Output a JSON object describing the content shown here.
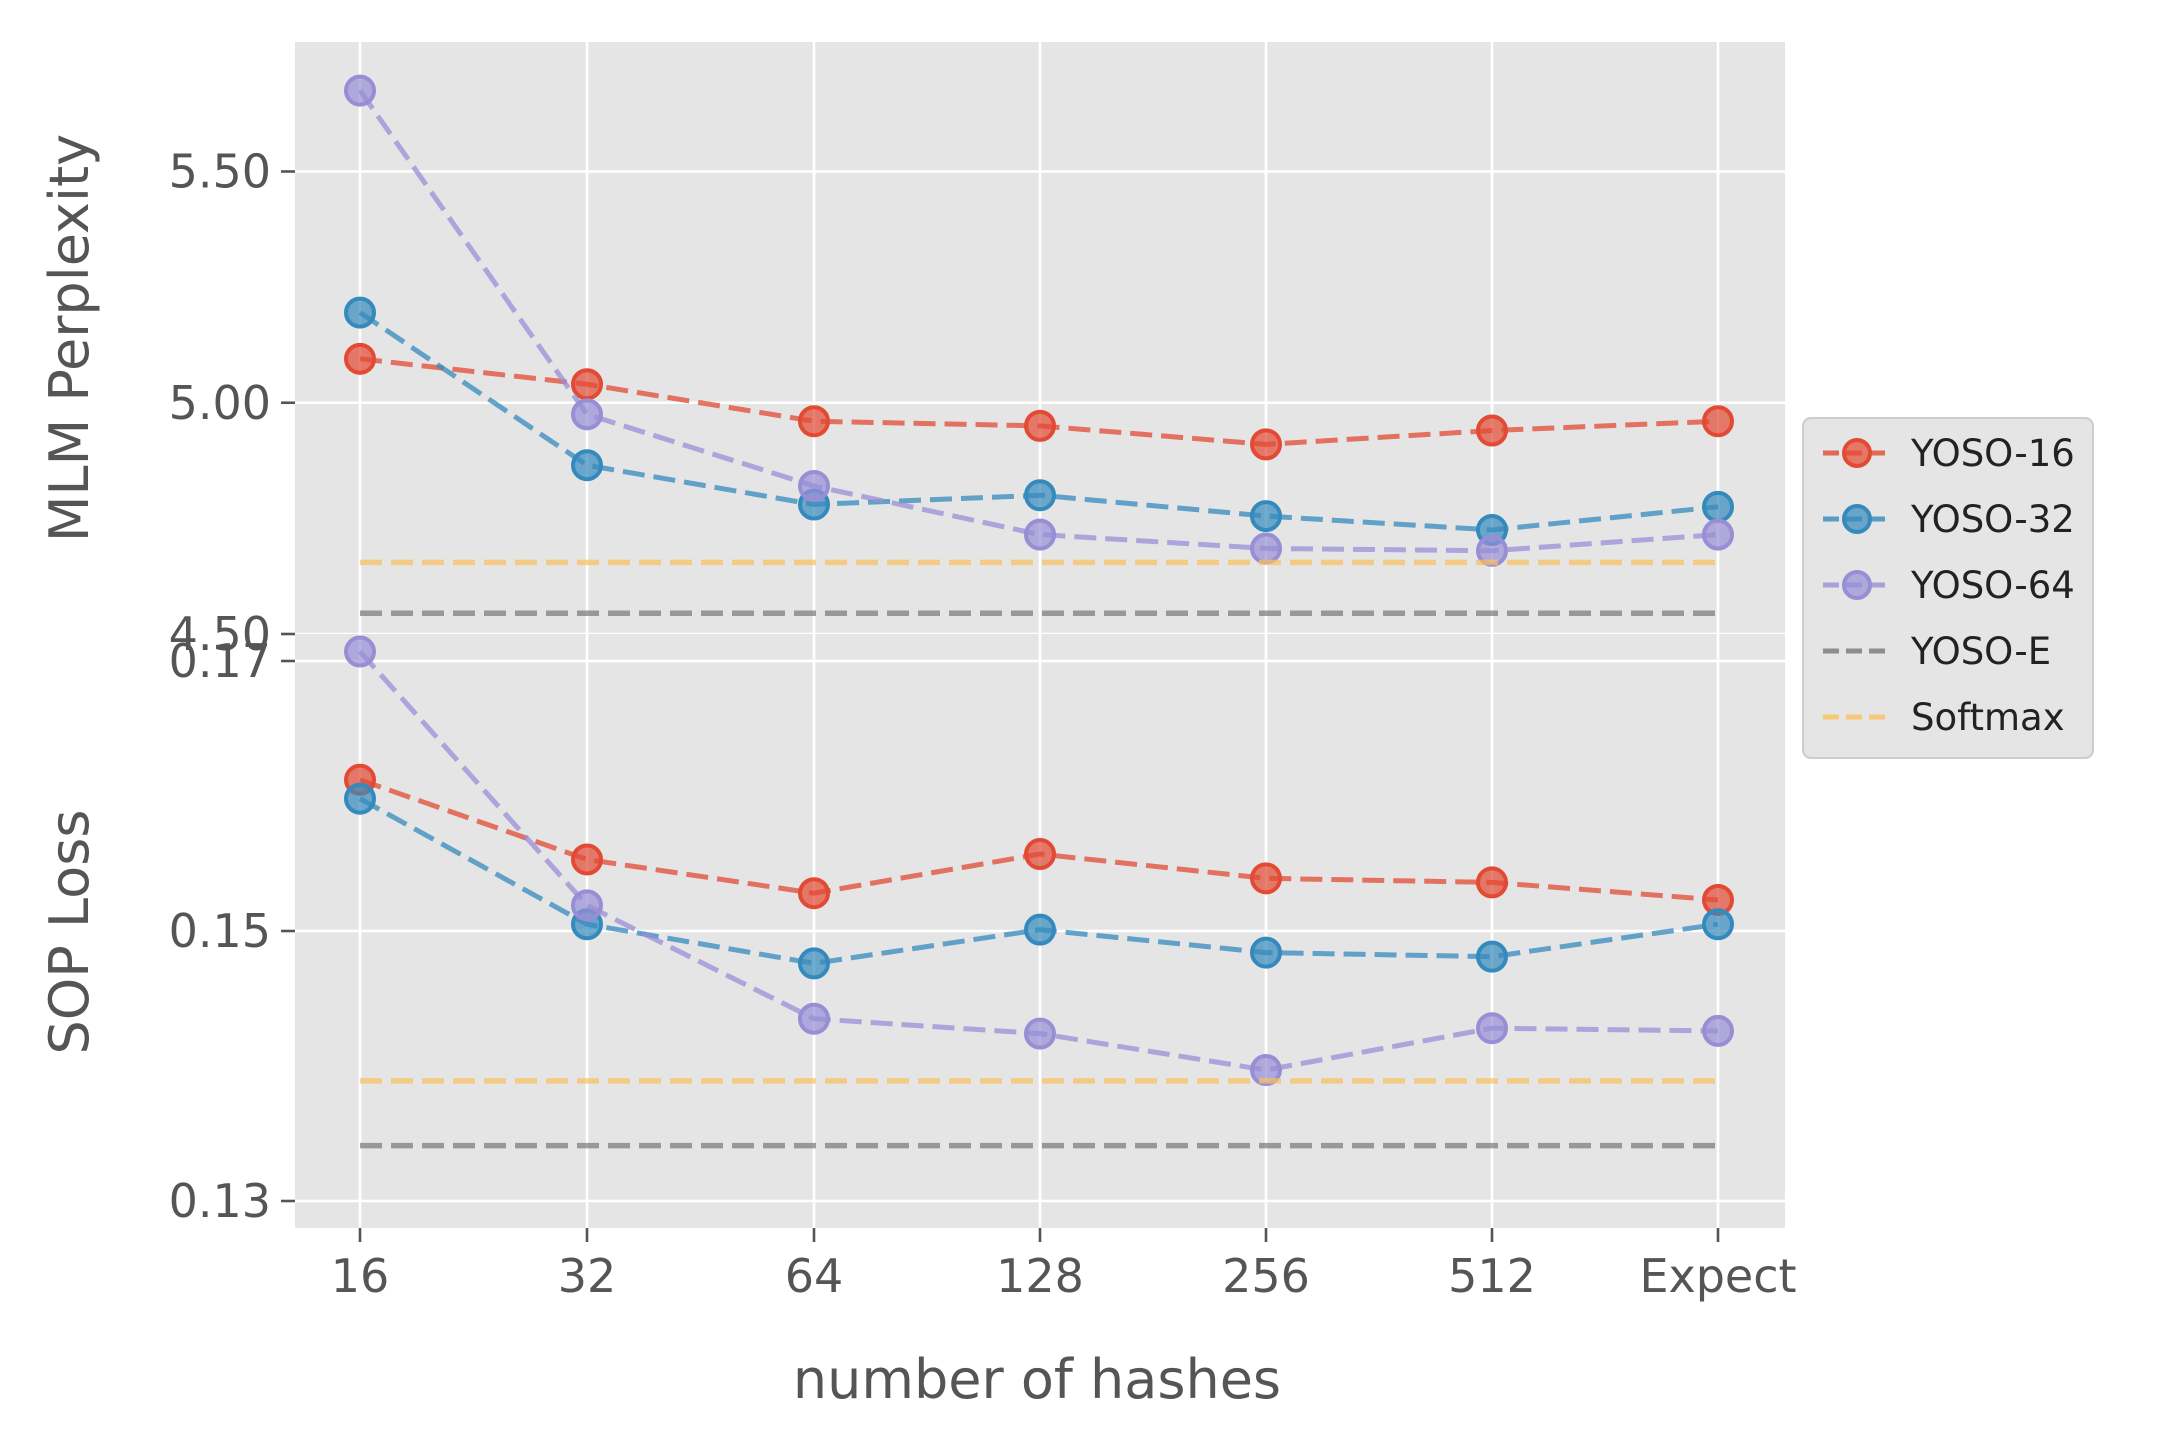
{
  "chart_data": [
    {
      "type": "line",
      "ylabel": "MLM Perplexity",
      "ylim": [
        4.5,
        5.78
      ],
      "yticks": [
        "4.50",
        "5.00",
        "5.50"
      ],
      "xticks": [
        "16",
        "32",
        "64",
        "128",
        "256",
        "512",
        "Expect"
      ],
      "series": [
        {
          "name": "YOSO-16",
          "color": "#E24A33",
          "values": [
            5.095,
            5.04,
            4.96,
            4.95,
            4.91,
            4.94,
            4.96
          ]
        },
        {
          "name": "YOSO-32",
          "color": "#348ABD",
          "values": [
            5.195,
            4.865,
            4.78,
            4.8,
            4.755,
            4.725,
            4.775
          ]
        },
        {
          "name": "YOSO-64",
          "color": "#988ED5",
          "values": [
            5.675,
            4.975,
            4.82,
            4.715,
            4.685,
            4.68,
            4.715
          ]
        },
        {
          "name": "YOSO-E",
          "color": "#777777",
          "values": [
            4.545,
            4.545,
            4.545,
            4.545,
            4.545,
            4.545,
            4.545
          ]
        },
        {
          "name": "Softmax",
          "color": "#FBC15E",
          "values": [
            4.655,
            4.655,
            4.655,
            4.655,
            4.655,
            4.655,
            4.655
          ]
        }
      ]
    },
    {
      "type": "line",
      "xlabel": "number of hashes",
      "ylabel": "SOP Loss",
      "ylim": [
        0.128,
        0.172
      ],
      "yticks": [
        "0.13",
        "0.15",
        "0.17"
      ],
      "xticks": [
        "16",
        "32",
        "64",
        "128",
        "256",
        "512",
        "Expect"
      ],
      "series": [
        {
          "name": "YOSO-16",
          "color": "#E24A33",
          "values": [
            0.1612,
            0.1553,
            0.1528,
            0.1557,
            0.1539,
            0.1536,
            0.1523
          ]
        },
        {
          "name": "YOSO-32",
          "color": "#348ABD",
          "values": [
            0.1598,
            0.1505,
            0.1476,
            0.1501,
            0.1484,
            0.1481,
            0.1505
          ]
        },
        {
          "name": "YOSO-64",
          "color": "#988ED5",
          "values": [
            0.1707,
            0.1519,
            0.1435,
            0.1424,
            0.1397,
            0.1428,
            0.1426
          ]
        },
        {
          "name": "YOSO-E",
          "color": "#777777",
          "values": [
            0.1341,
            0.1341,
            0.1341,
            0.1341,
            0.1341,
            0.1341,
            0.1341
          ]
        },
        {
          "name": "Softmax",
          "color": "#FBC15E",
          "values": [
            0.1389,
            0.1389,
            0.1389,
            0.1389,
            0.1389,
            0.1389,
            0.1389
          ]
        }
      ]
    }
  ],
  "legend": {
    "placement": "right",
    "items": [
      {
        "label": "YOSO-16",
        "color": "#E24A33",
        "marker": true
      },
      {
        "label": "YOSO-32",
        "color": "#348ABD",
        "marker": true
      },
      {
        "label": "YOSO-64",
        "color": "#988ED5",
        "marker": true
      },
      {
        "label": "YOSO-E",
        "color": "#777777",
        "marker": false
      },
      {
        "label": "Softmax",
        "color": "#FBC15E",
        "marker": false
      }
    ]
  },
  "style": {
    "panel_bg": "#E5E5E5",
    "grid_color": "#FFFFFF",
    "text_color": "#555555",
    "grid": true
  }
}
